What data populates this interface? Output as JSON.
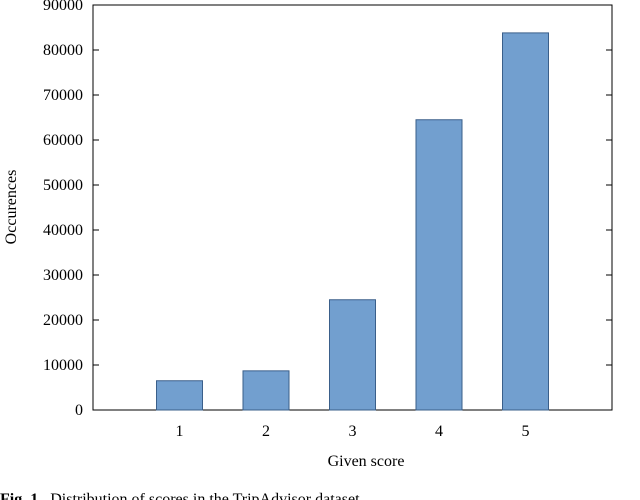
{
  "chart_data": {
    "type": "bar",
    "xlabel": "Given score",
    "ylabel": "Occurences",
    "categories": [
      "1",
      "2",
      "3",
      "4",
      "5"
    ],
    "values": [
      6500,
      8700,
      24500,
      64500,
      83800
    ],
    "color": "#729fcf",
    "ylim": [
      0,
      90000
    ],
    "yticks": [
      0,
      10000,
      20000,
      30000,
      40000,
      50000,
      60000,
      70000,
      80000,
      90000
    ],
    "caption_label": "Fig. 1.",
    "caption": "Distribution of scores in the TripAdvisor dataset"
  }
}
